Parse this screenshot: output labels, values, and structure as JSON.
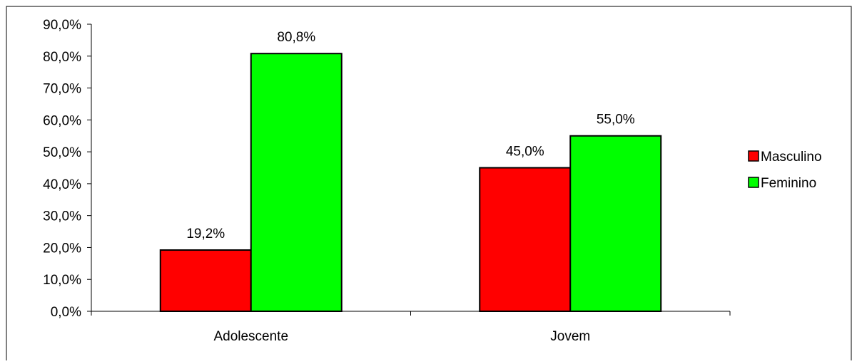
{
  "chart_data": {
    "type": "bar",
    "title": "",
    "xlabel": "",
    "ylabel": "",
    "categories": [
      "Adolescente",
      "Jovem"
    ],
    "series": [
      {
        "name": "Masculino",
        "color": "#ff0000",
        "values": [
          19.2,
          45.0
        ],
        "labels": [
          "19,2%",
          "45,0%"
        ]
      },
      {
        "name": "Feminino",
        "color": "#00ff00",
        "values": [
          80.8,
          55.0
        ],
        "labels": [
          "80,8%",
          "55,0%"
        ]
      }
    ],
    "ylim": [
      0,
      90
    ],
    "yticks": [
      {
        "value": 0,
        "label": "0,0%"
      },
      {
        "value": 10,
        "label": "10,0%"
      },
      {
        "value": 20,
        "label": "20,0%"
      },
      {
        "value": 30,
        "label": "30,0%"
      },
      {
        "value": 40,
        "label": "40,0%"
      },
      {
        "value": 50,
        "label": "50,0%"
      },
      {
        "value": 60,
        "label": "60,0%"
      },
      {
        "value": 70,
        "label": "70,0%"
      },
      {
        "value": 80,
        "label": "80,0%"
      },
      {
        "value": 90,
        "label": "90,0%"
      }
    ],
    "grid": false,
    "legend": "right"
  }
}
